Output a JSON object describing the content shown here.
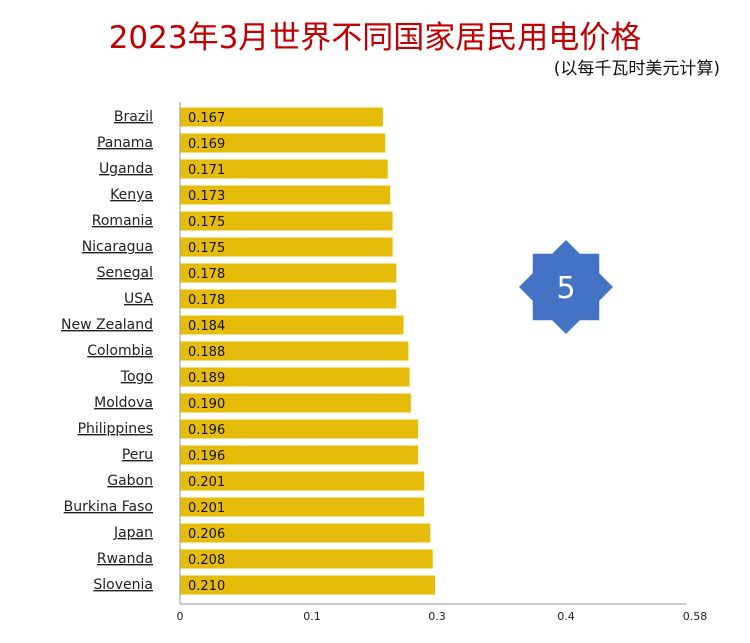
{
  "title": "2023年3月世界不同国家居民用电价格",
  "subtitle": "(以每千瓦时美元计算)",
  "badge": "5",
  "colors": {
    "bar": "#e6bc0a",
    "title": "#c00000",
    "badge": "#4472c4"
  },
  "chart_data": {
    "type": "bar",
    "orientation": "horizontal",
    "title": "2023年3月世界不同国家居民用电价格",
    "subtitle": "(以每千瓦时美元计算)",
    "categories": [
      "Brazil",
      "Panama",
      "Uganda",
      "Kenya",
      "Romania",
      "Nicaragua",
      "Senegal",
      "USA",
      "New Zealand",
      "Colombia",
      "Togo",
      "Moldova",
      "Philippines",
      "Peru",
      "Gabon",
      "Burkina Faso",
      "Japan",
      "Rwanda",
      "Slovenia"
    ],
    "values": [
      0.167,
      0.169,
      0.171,
      0.173,
      0.175,
      0.175,
      0.178,
      0.178,
      0.184,
      0.188,
      0.189,
      0.19,
      0.196,
      0.196,
      0.201,
      0.201,
      0.206,
      0.208,
      0.21
    ],
    "value_labels": [
      "0.167",
      "0.169",
      "0.171",
      "0.173",
      "0.175",
      "0.175",
      "0.178",
      "0.178",
      "0.184",
      "0.188",
      "0.189",
      "0.190",
      "0.196",
      "0.196",
      "0.201",
      "0.201",
      "0.206",
      "0.208",
      "0.210"
    ],
    "x_ticks": [
      0,
      0.1,
      0.3,
      0.4,
      0.58
    ],
    "x_tick_labels": [
      "0",
      "0.1",
      "0.3",
      "0.4",
      "0.58"
    ],
    "xlim": [
      0,
      0.58
    ],
    "grid": false
  }
}
